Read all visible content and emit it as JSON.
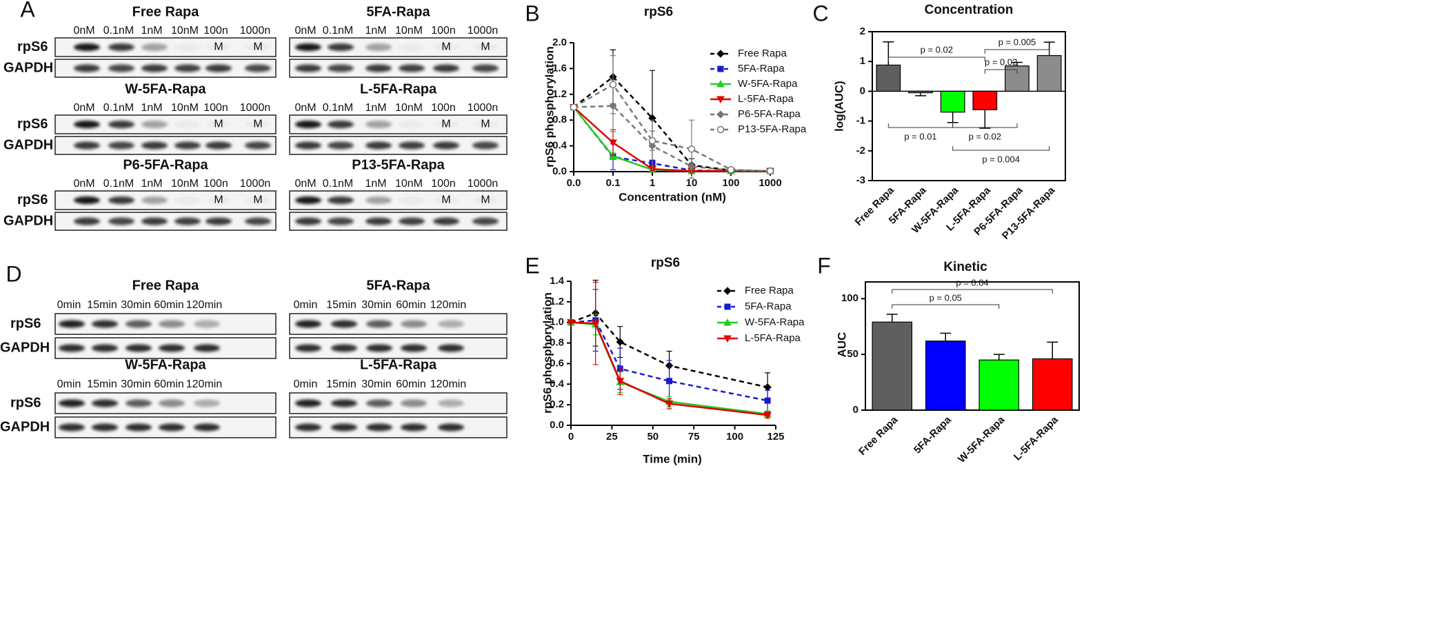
{
  "blot_panels": [
    {
      "letter": "A",
      "rows": [
        "rpS6",
        "GAPDH"
      ],
      "lanes": [
        "0nM",
        "0.1nM",
        "1nM",
        "10nM",
        "100n",
        "1000n"
      ],
      "blots": [
        {
          "title": "Free Rapa",
          "lane_marks": [
            null,
            null,
            null,
            null,
            "M",
            "M"
          ]
        },
        {
          "title": "5FA-Rapa",
          "lane_marks": [
            null,
            null,
            null,
            null,
            "M",
            "M"
          ]
        },
        {
          "title": "W-5FA-Rapa",
          "lane_marks": [
            null,
            null,
            null,
            null,
            "M",
            "M"
          ]
        },
        {
          "title": "L-5FA-Rapa",
          "lane_marks": [
            null,
            null,
            null,
            null,
            "M",
            "M"
          ]
        },
        {
          "title": "P6-5FA-Rapa",
          "lane_marks": [
            null,
            null,
            null,
            null,
            "M",
            "M"
          ]
        },
        {
          "title": "P13-5FA-Rapa",
          "lane_marks": [
            null,
            null,
            null,
            null,
            "M",
            "M"
          ]
        }
      ]
    },
    {
      "letter": "D",
      "rows": [
        "rpS6",
        "GAPDH"
      ],
      "lanes": [
        "0min",
        "15min",
        "30min",
        "60min",
        "120min"
      ],
      "blots": [
        {
          "title": "Free Rapa"
        },
        {
          "title": "5FA-Rapa"
        },
        {
          "title": "W-5FA-Rapa"
        },
        {
          "title": "L-5FA-Rapa"
        }
      ]
    }
  ],
  "chart_data": [
    {
      "type": "line",
      "letter": "B",
      "title": "rpS6",
      "x_label": "Concentration (nM)",
      "y_label": "rpS6 phosphorylation",
      "categories": [
        "0.0",
        "0.1",
        "1",
        "10",
        "100",
        "1000"
      ],
      "ylim": [
        0,
        2
      ],
      "yticks": [
        {
          "value": 0,
          "label": "0.0"
        },
        0.4,
        0.8,
        1.2,
        1.6,
        {
          "value": 2,
          "label": "2.0"
        }
      ],
      "legend": "upper right",
      "series": [
        {
          "name": "Free Rapa",
          "color": "#000000",
          "dashed": true,
          "marker": "diamond",
          "values": [
            1.0,
            1.47,
            0.83,
            0.1,
            0.02,
            0.01
          ],
          "errors": [
            0,
            0.42,
            0.74,
            0.1,
            0.02,
            0.01
          ]
        },
        {
          "name": "5FA-Rapa",
          "color": "#1a1acc",
          "dashed": true,
          "marker": "square",
          "values": [
            1.0,
            0.23,
            0.13,
            0.02,
            0.01,
            0.01
          ],
          "errors": [
            0,
            0.2,
            0.05,
            0.01,
            0,
            0
          ]
        },
        {
          "name": "W-5FA-Rapa",
          "color": "#22cc22",
          "dashed": false,
          "marker": "triangle",
          "values": [
            1.0,
            0.24,
            0.03,
            0.01,
            0.01,
            0.01
          ],
          "errors": [
            0,
            0.05,
            0.02,
            0,
            0,
            0
          ]
        },
        {
          "name": "L-5FA-Rapa",
          "color": "#e00000",
          "dashed": false,
          "marker": "triangle-down",
          "values": [
            1.0,
            0.45,
            0.04,
            0.01,
            0.01,
            0.01
          ],
          "errors": [
            0,
            0.2,
            0.03,
            0,
            0,
            0
          ]
        },
        {
          "name": "P6-5FA-Rapa",
          "color": "#777777",
          "dashed": true,
          "marker": "diamond",
          "values": [
            1.0,
            1.02,
            0.4,
            0.08,
            0.02,
            0.01
          ],
          "errors": [
            0,
            0.4,
            0.4,
            0.05,
            0.01,
            0
          ]
        },
        {
          "name": "P13-5FA-Rapa",
          "color": "#777777",
          "dashed": true,
          "marker": "circle-open",
          "values": [
            1.0,
            1.35,
            0.48,
            0.35,
            0.03,
            0.01
          ],
          "errors": [
            0,
            0.45,
            0.15,
            0.45,
            0.02,
            0
          ]
        }
      ]
    },
    {
      "type": "bar",
      "letter": "C",
      "title": "Concentration",
      "y_label": "log(AUC)",
      "categories": [
        "Free Rapa",
        "5FA-Rapa",
        "W-5FA-Rapa",
        "L-5FA-Rapa",
        "P6-5FA-Rapa",
        "P13-5FA-Rapa"
      ],
      "values": [
        0.88,
        -0.05,
        -0.7,
        -0.62,
        0.85,
        1.2
      ],
      "errors": [
        0.78,
        0.1,
        0.35,
        0.62,
        0.12,
        0.45
      ],
      "colors": [
        "#5f5f5f",
        "#808080",
        "#00ff00",
        "#ff0000",
        "#8c8c8c",
        "#8c8c8c"
      ],
      "ylim": [
        -3,
        2
      ],
      "yticks": [
        -3,
        -2,
        -1,
        0,
        1,
        2
      ],
      "comparisons": [
        {
          "label": "p = 0.02",
          "from": 0,
          "to": 3
        },
        {
          "label": "p = 0.005",
          "from": 3,
          "to": 5
        },
        {
          "label": "p = 0.02",
          "from": 3,
          "to": 4
        },
        {
          "label": "p = 0.01",
          "from": 0,
          "to": 2
        },
        {
          "label": "p = 0.02",
          "from": 2,
          "to": 4
        },
        {
          "label": "p = 0.004",
          "from": 2,
          "to": 5
        }
      ]
    },
    {
      "type": "line",
      "letter": "E",
      "title": "rpS6",
      "x_label": "Time (min)",
      "y_label": "rpS6 phosphorylation",
      "x": [
        0,
        15,
        30,
        60,
        120
      ],
      "xlim": [
        0,
        125
      ],
      "xticks": [
        0,
        25,
        50,
        75,
        100,
        125
      ],
      "ylim": [
        0,
        1.4
      ],
      "yticks": [
        {
          "value": 0,
          "label": "0.0"
        },
        0.2,
        0.4,
        0.6,
        0.8,
        {
          "value": 1,
          "label": "1.0"
        },
        1.2,
        1.4
      ],
      "legend": "upper right",
      "series": [
        {
          "name": "Free Rapa",
          "color": "#000000",
          "dashed": true,
          "marker": "diamond",
          "values": [
            1.0,
            1.09,
            0.81,
            0.58,
            0.37
          ],
          "errors": [
            0,
            0.32,
            0.15,
            0.14,
            0.14
          ]
        },
        {
          "name": "5FA-Rapa",
          "color": "#1a1acc",
          "dashed": true,
          "marker": "square",
          "values": [
            1.0,
            1.02,
            0.55,
            0.43,
            0.24
          ],
          "errors": [
            0,
            0.3,
            0.2,
            0.2,
            0.1
          ]
        },
        {
          "name": "W-5FA-Rapa",
          "color": "#22cc22",
          "dashed": false,
          "marker": "triangle",
          "values": [
            1.0,
            0.98,
            0.42,
            0.23,
            0.11
          ],
          "errors": [
            0,
            0.1,
            0.1,
            0.05,
            0.03
          ]
        },
        {
          "name": "L-5FA-Rapa",
          "color": "#e00000",
          "dashed": false,
          "marker": "triangle-down",
          "values": [
            1.0,
            0.99,
            0.43,
            0.21,
            0.1
          ],
          "errors": [
            0,
            0.4,
            0.13,
            0.05,
            0.03
          ]
        }
      ]
    },
    {
      "type": "bar",
      "letter": "F",
      "title": "Kinetic",
      "y_label": "AUC",
      "categories": [
        "Free Rapa",
        "5FA-Rapa",
        "W-5FA-Rapa",
        "L-5FA-Rapa"
      ],
      "values": [
        79,
        62,
        45,
        46
      ],
      "errors": [
        7,
        7,
        5,
        15
      ],
      "colors": [
        "#5f5f5f",
        "#0000ff",
        "#00ff00",
        "#ff0000"
      ],
      "ylim": [
        0,
        115
      ],
      "yticks": [
        0,
        50,
        100
      ],
      "comparisons": [
        {
          "label": "p = 0.05",
          "from": 0,
          "to": 2
        },
        {
          "label": "p = 0.04",
          "from": 0,
          "to": 3
        }
      ]
    }
  ]
}
